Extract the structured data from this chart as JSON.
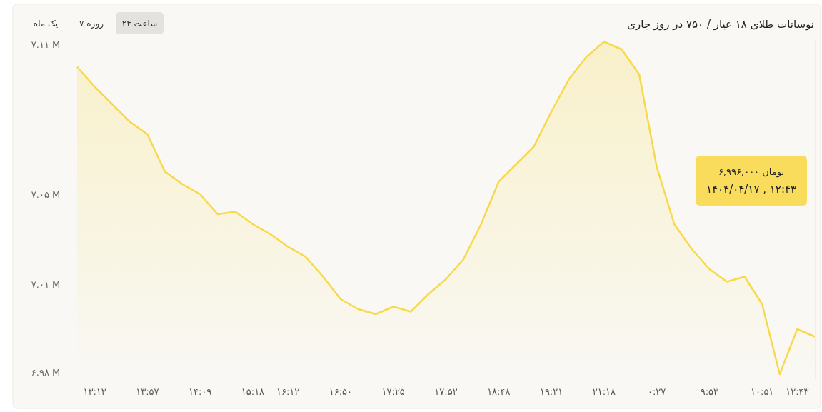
{
  "chart_data": {
    "type": "area",
    "title": "نوسانات طلای ۱۸ عیار / ۷۵۰ در روز جاری",
    "color": "#f8d94a",
    "categories": [
      null,
      "۱۳:۱۳",
      null,
      null,
      "۱۳:۵۷",
      null,
      null,
      "۱۴:۰۹",
      null,
      null,
      "۱۵:۱۸",
      null,
      "۱۶:۱۲",
      null,
      null,
      "۱۶:۵۰",
      null,
      null,
      "۱۷:۲۵",
      null,
      null,
      "۱۷:۵۲",
      null,
      null,
      "۱۸:۴۸",
      null,
      null,
      "۱۹:۲۱",
      null,
      null,
      "۲۱:۱۸",
      null,
      null,
      "۰:۲۷",
      null,
      null,
      "۹:۵۳",
      null,
      null,
      "۱۰:۵۱",
      null,
      "۱۲:۴۳",
      null
    ],
    "values": [
      7.101,
      7.093,
      7.086,
      7.079,
      7.074,
      7.059,
      7.054,
      7.05,
      7.042,
      7.043,
      7.038,
      7.034,
      7.029,
      7.025,
      7.017,
      7.008,
      7.004,
      7.002,
      7.005,
      7.003,
      7.01,
      7.016,
      7.024,
      7.038,
      7.055,
      7.062,
      7.069,
      7.083,
      7.096,
      7.105,
      7.111,
      7.108,
      7.098,
      7.061,
      7.038,
      7.028,
      7.02,
      7.015,
      7.017,
      7.006,
      6.978,
      6.996,
      6.993
    ],
    "ylim": [
      6.976,
      7.112
    ],
    "yticks": [
      {
        "value": 7.11,
        "label": "۷.۱۱ M"
      },
      {
        "value": 7.05,
        "label": "۷.۰۵ M"
      },
      {
        "value": 7.014,
        "label": "۷.۰۱ M"
      },
      {
        "value": 6.979,
        "label": "۶.۹۸ M"
      }
    ],
    "annotations": [
      "یک ماه",
      "۷ روزه",
      "۲۴ ساعت",
      "۶,۹۹۶,۰۰۰ تومان\n۱۴۰۴/۰۴/۱۷ , ۱۲:۴۳"
    ]
  }
}
